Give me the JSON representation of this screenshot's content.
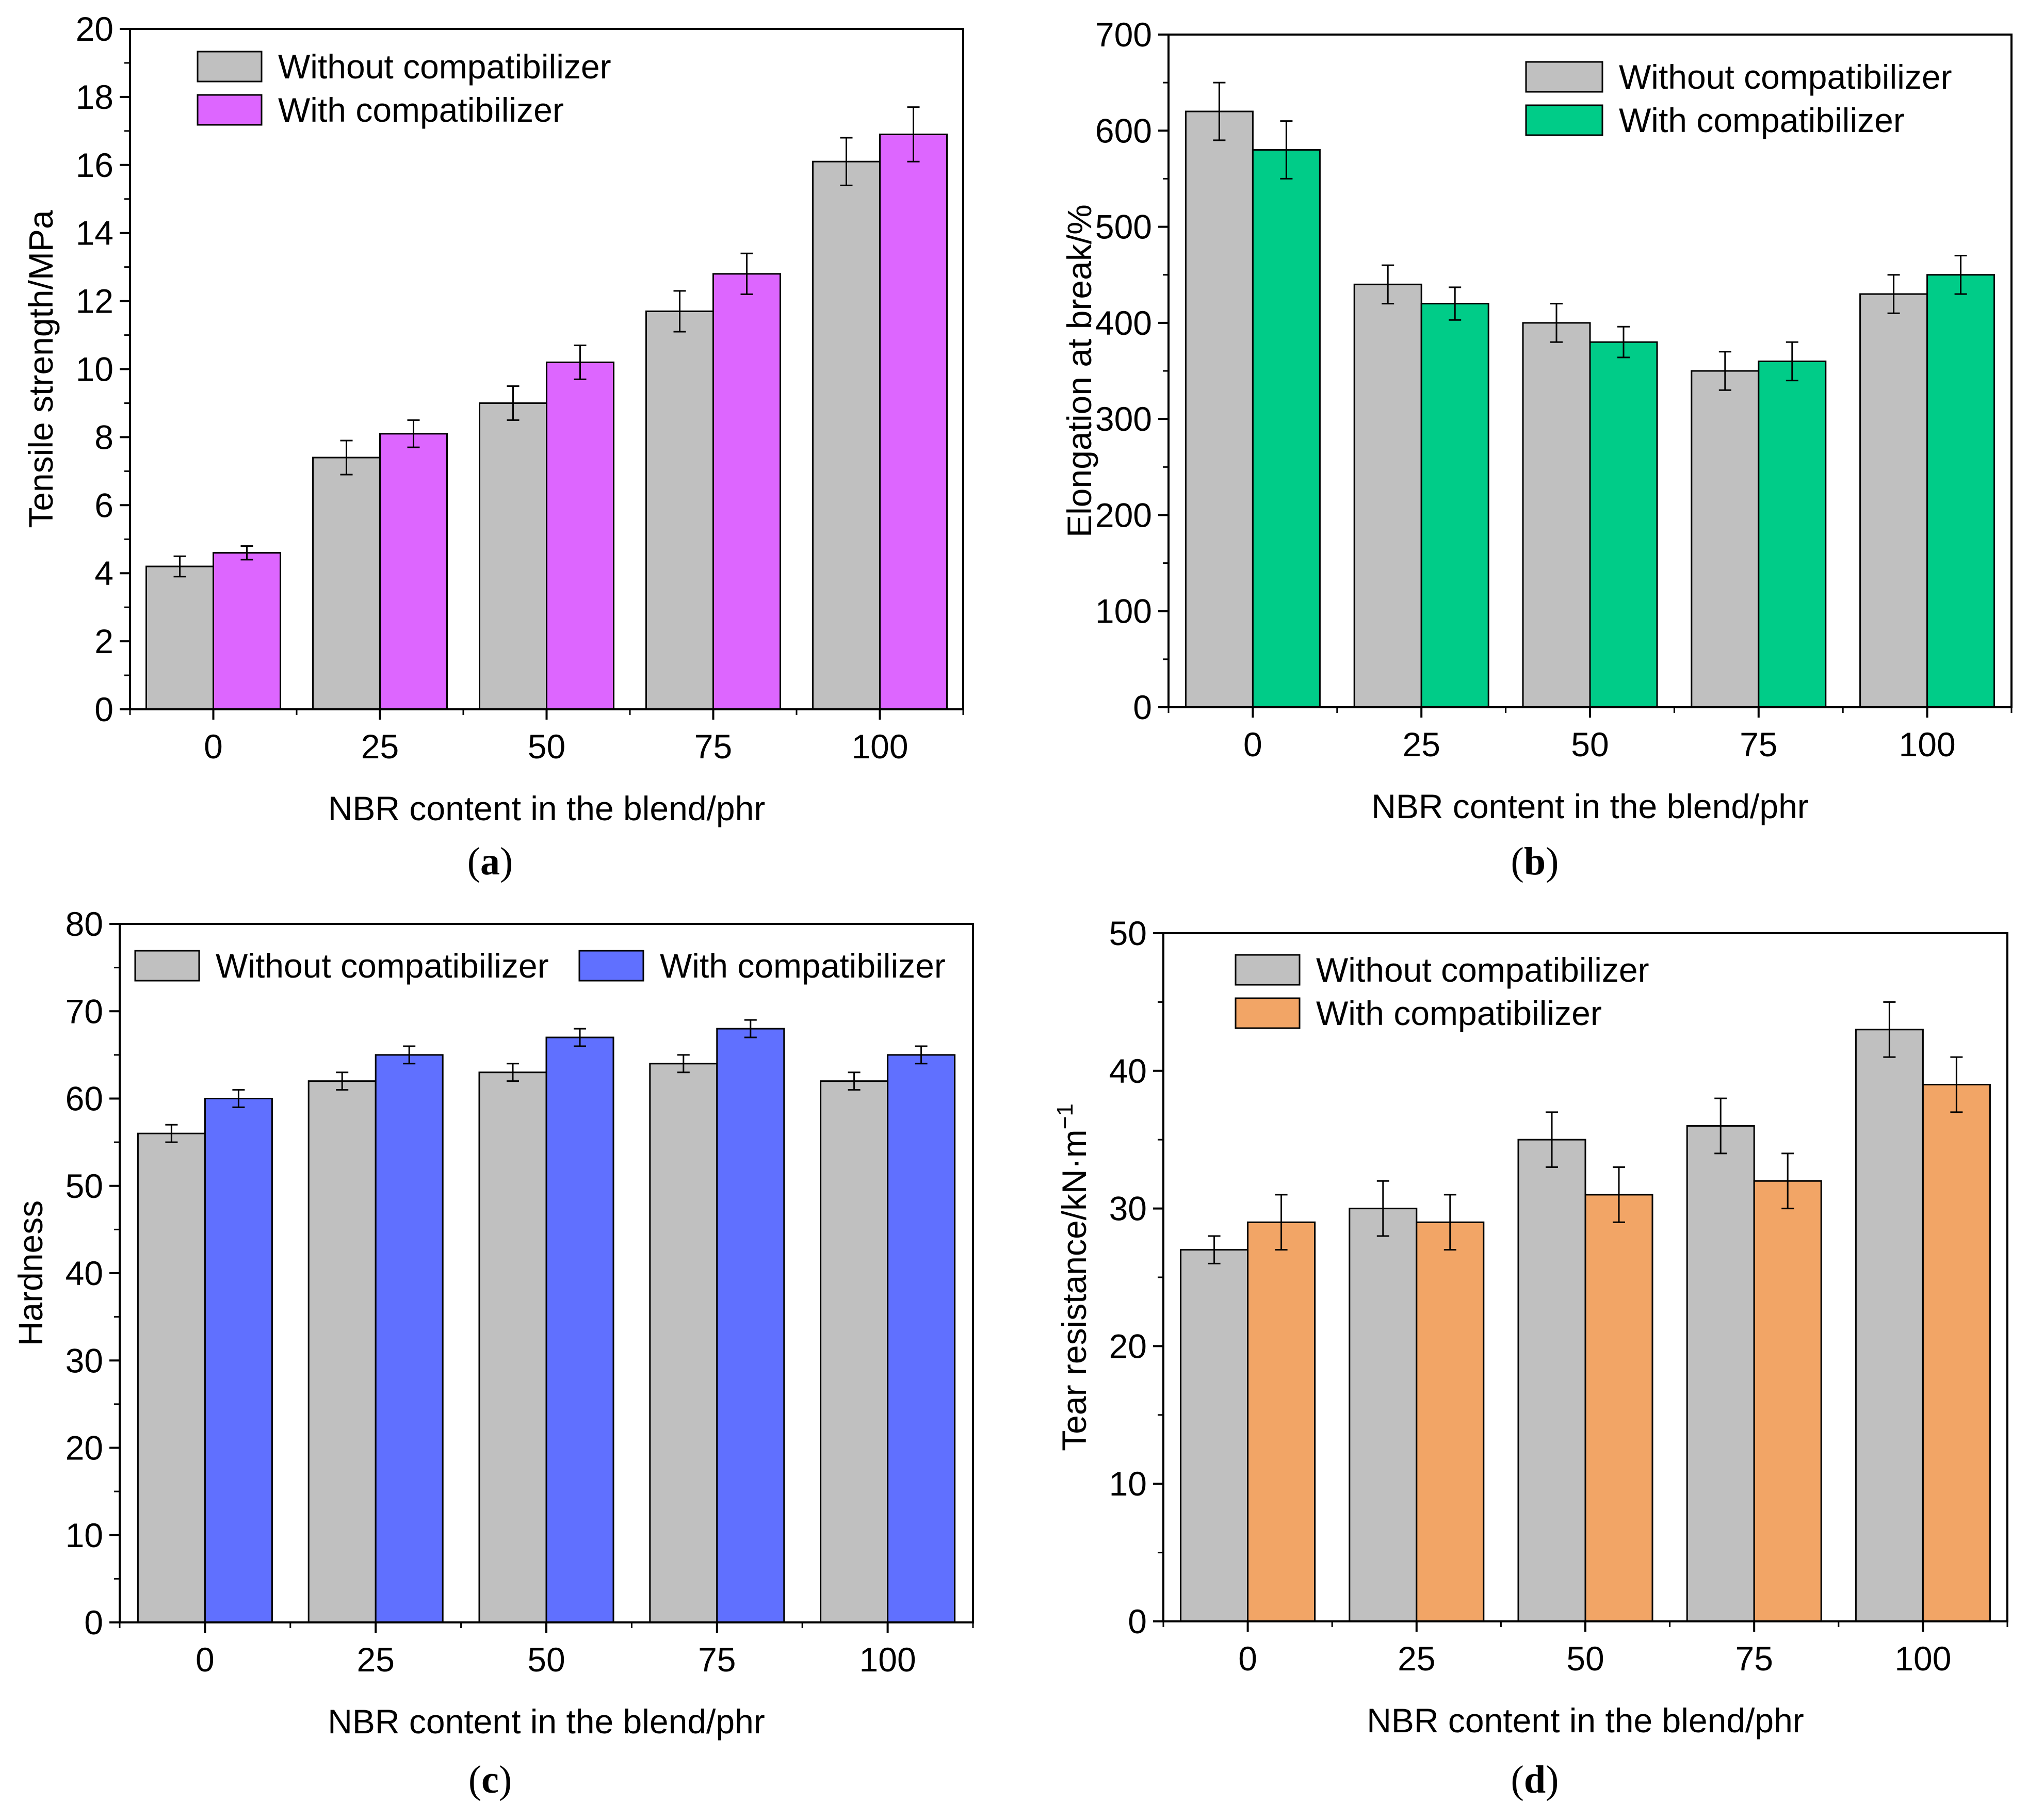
{
  "figure": {
    "panels": [
      {
        "caption_letter": "a"
      },
      {
        "caption_letter": "b"
      },
      {
        "caption_letter": "c"
      },
      {
        "caption_letter": "d"
      }
    ]
  },
  "chart_data": [
    {
      "type": "bar",
      "title": "",
      "xlabel": "NBR content in the blend/phr",
      "ylabel": "Tensile strength/MPa",
      "categories": [
        "0",
        "25",
        "50",
        "75",
        "100"
      ],
      "ylim": [
        0,
        20
      ],
      "yticks": [
        0,
        2,
        4,
        6,
        8,
        10,
        12,
        14,
        16,
        18,
        20
      ],
      "legend_position": "top-left",
      "series": [
        {
          "name": "Without compatibilizer",
          "color": "#c0c0c0",
          "values": [
            4.2,
            7.4,
            9.0,
            11.7,
            16.1
          ],
          "errors": [
            0.3,
            0.5,
            0.5,
            0.6,
            0.7
          ]
        },
        {
          "name": "With compatibilizer",
          "color": "#dd66ff",
          "values": [
            4.6,
            8.1,
            10.2,
            12.8,
            16.9
          ],
          "errors": [
            0.2,
            0.4,
            0.5,
            0.6,
            0.8
          ]
        }
      ]
    },
    {
      "type": "bar",
      "title": "",
      "xlabel": "NBR content in the blend/phr",
      "ylabel": "Elongation at break/%",
      "categories": [
        "0",
        "25",
        "50",
        "75",
        "100"
      ],
      "ylim": [
        0,
        700
      ],
      "yticks": [
        0,
        100,
        200,
        300,
        400,
        500,
        600,
        700
      ],
      "legend_position": "top-right",
      "series": [
        {
          "name": "Without compatibilizer",
          "color": "#c0c0c0",
          "values": [
            620,
            440,
            400,
            350,
            430
          ],
          "errors": [
            30,
            20,
            20,
            20,
            20
          ]
        },
        {
          "name": "With compatibilizer",
          "color": "#00cc88",
          "values": [
            580,
            420,
            380,
            360,
            450
          ],
          "errors": [
            30,
            17,
            16,
            20,
            20
          ]
        }
      ]
    },
    {
      "type": "bar",
      "title": "",
      "xlabel": "NBR content in the blend/phr",
      "ylabel": "Hardness",
      "categories": [
        "0",
        "25",
        "50",
        "75",
        "100"
      ],
      "ylim": [
        0,
        80
      ],
      "yticks": [
        0,
        10,
        20,
        30,
        40,
        50,
        60,
        70,
        80
      ],
      "legend_position": "top",
      "series": [
        {
          "name": "Without compatibilizer",
          "color": "#c0c0c0",
          "values": [
            56,
            62,
            63,
            64,
            62
          ],
          "errors": [
            1,
            1,
            1,
            1,
            1
          ]
        },
        {
          "name": "With compatibilizer",
          "color": "#6070ff",
          "values": [
            60,
            65,
            67,
            68,
            65
          ],
          "errors": [
            1,
            1,
            1,
            1,
            1
          ]
        }
      ]
    },
    {
      "type": "bar",
      "title": "",
      "xlabel": "NBR content in the blend/phr",
      "ylabel": "Tear resistance/kN·m",
      "ylabel_superscript": "−1",
      "categories": [
        "0",
        "25",
        "50",
        "75",
        "100"
      ],
      "ylim": [
        0,
        50
      ],
      "yticks": [
        0,
        10,
        20,
        30,
        40,
        50
      ],
      "legend_position": "top-left",
      "series": [
        {
          "name": "Without compatibilizer",
          "color": "#c0c0c0",
          "values": [
            27,
            30,
            35,
            36,
            43
          ],
          "errors": [
            1,
            2,
            2,
            2,
            2
          ]
        },
        {
          "name": "With compatibilizer",
          "color": "#f2a566",
          "values": [
            29,
            29,
            31,
            32,
            39
          ],
          "errors": [
            2,
            2,
            2,
            2,
            2
          ]
        }
      ]
    }
  ]
}
